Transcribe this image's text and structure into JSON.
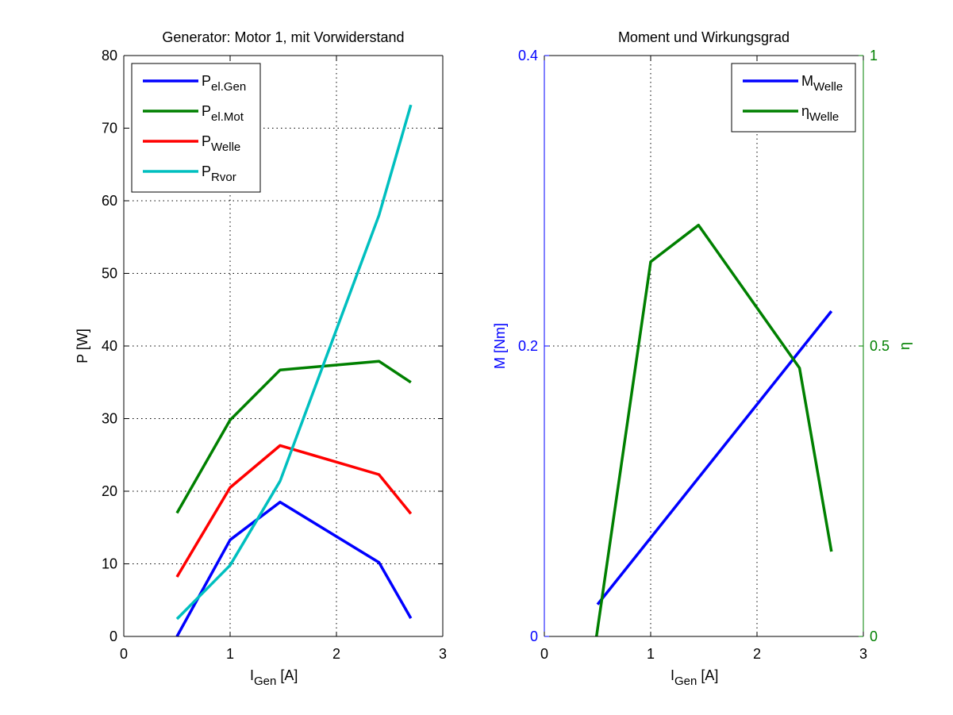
{
  "chart_data": [
    {
      "type": "line",
      "title": "Generator: Motor 1, mit Vorwiderstand",
      "xlabel": {
        "main": "I",
        "sub": "Gen",
        "unit": " [A]"
      },
      "ylabel": "P [W]",
      "xlim": [
        0,
        3
      ],
      "ylim": [
        0,
        80
      ],
      "xticks": [
        0,
        1,
        2,
        3
      ],
      "yticks": [
        0,
        10,
        20,
        30,
        40,
        50,
        60,
        70,
        80
      ],
      "grid": true,
      "legend_position": "top-left",
      "series": [
        {
          "name": "P",
          "sub": "el.Gen",
          "color": "#0000ff",
          "x": [
            0.5,
            1.0,
            1.47,
            2.4,
            2.7
          ],
          "y": [
            0,
            13.3,
            18.5,
            10.2,
            2.5
          ]
        },
        {
          "name": "P",
          "sub": "el.Mot",
          "color": "#008000",
          "x": [
            0.5,
            1.0,
            1.47,
            2.4,
            2.7
          ],
          "y": [
            17.0,
            29.8,
            36.7,
            37.9,
            35.0
          ]
        },
        {
          "name": "P",
          "sub": "Welle",
          "color": "#ff0000",
          "x": [
            0.5,
            1.0,
            1.47,
            2.4,
            2.7
          ],
          "y": [
            8.2,
            20.5,
            26.3,
            22.3,
            16.9
          ]
        },
        {
          "name": "P",
          "sub": "Rvor",
          "color": "#00bfbf",
          "x": [
            0.5,
            1.0,
            1.47,
            2.4,
            2.7
          ],
          "y": [
            2.4,
            9.8,
            21.4,
            58.0,
            73.2
          ]
        }
      ]
    },
    {
      "type": "line",
      "title": "Moment und Wirkungsgrad",
      "xlabel": {
        "main": "I",
        "sub": "Gen",
        "unit": " [A]"
      },
      "ylabel": "M [Nm]",
      "y2label": "η",
      "xlim": [
        0,
        3
      ],
      "ylim": [
        0,
        0.4
      ],
      "y2lim": [
        0,
        1
      ],
      "xticks": [
        0,
        1,
        2,
        3
      ],
      "yticks": [
        0,
        0.2,
        0.4
      ],
      "ytick_labels": [
        "0",
        "0.2",
        "0.4"
      ],
      "y2ticks": [
        0,
        0.5,
        1
      ],
      "y2tick_labels": [
        "0",
        "0.5",
        "1"
      ],
      "y_color": "#0000ff",
      "y2_color": "#008000",
      "grid": true,
      "legend_position": "top-right",
      "series": [
        {
          "name": "M",
          "sub": "Welle",
          "color": "#0000ff",
          "axis": "left",
          "x": [
            0.5,
            2.7
          ],
          "y": [
            0.022,
            0.224
          ]
        },
        {
          "name": "η",
          "sub": "Welle",
          "color": "#008000",
          "axis": "right",
          "x": [
            0.49,
            1.0,
            1.45,
            2.4,
            2.7
          ],
          "y": [
            0,
            0.645,
            0.708,
            0.462,
            0.146
          ]
        }
      ]
    }
  ]
}
